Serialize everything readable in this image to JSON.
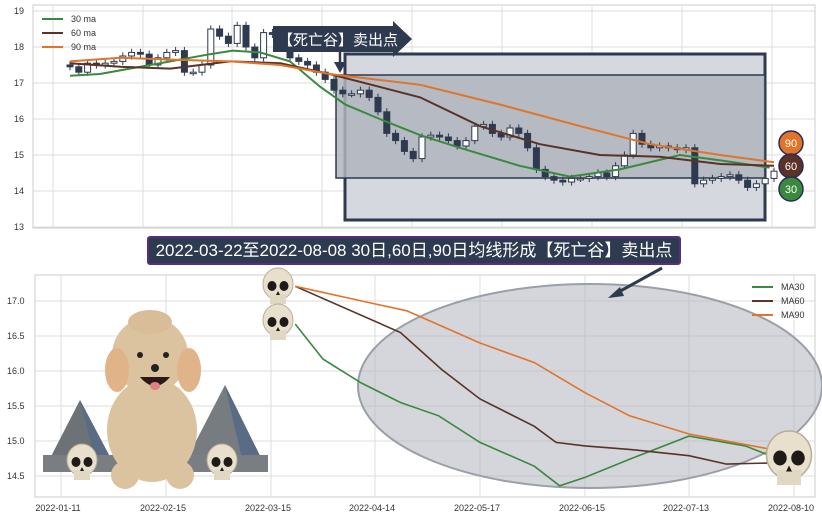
{
  "top_banner": "【死亡谷】卖出点",
  "bottom_title": "2022-03-22至2022-08-08 30日,60日,90日均线形成【死亡谷】卖出点",
  "badges": [
    {
      "label": "90",
      "color": "#e07428"
    },
    {
      "label": "60",
      "color": "#5a3226"
    },
    {
      "label": "30",
      "color": "#3a8a3e"
    }
  ],
  "chart_data": [
    {
      "type": "candlestick",
      "ylim": [
        13,
        19
      ],
      "yticks": [
        "13",
        "14",
        "15",
        "16",
        "17",
        "18",
        "19"
      ],
      "grid": true,
      "legend_position": "top-left",
      "close": [
        17.45,
        17.3,
        17.55,
        17.5,
        17.55,
        17.6,
        17.75,
        17.85,
        17.8,
        17.5,
        17.7,
        17.85,
        17.9,
        17.3,
        17.3,
        17.5,
        18.5,
        18.3,
        18.1,
        18.6,
        18.0,
        17.7,
        18.4,
        18.35,
        18.3,
        17.7,
        17.6,
        17.5,
        17.3,
        17.1,
        16.8,
        16.7,
        16.7,
        16.8,
        16.6,
        16.2,
        15.6,
        15.4,
        15.1,
        14.9,
        15.5,
        15.55,
        15.5,
        15.4,
        15.25,
        15.4,
        15.8,
        15.85,
        15.6,
        15.5,
        15.75,
        15.6,
        15.2,
        14.6,
        14.4,
        14.3,
        14.25,
        14.35,
        14.35,
        14.4,
        14.5,
        14.4,
        14.7,
        15.0,
        15.6,
        15.3,
        15.2,
        15.25,
        15.2,
        15.15,
        15.2,
        14.2,
        14.3,
        14.35,
        14.4,
        14.45,
        14.3,
        14.1,
        14.2,
        14.35,
        14.55
      ],
      "series": [
        {
          "name": "30 ma",
          "color": "#3a8a3e",
          "points": [
            [
              0,
              17.2
            ],
            [
              3.4,
              17.25
            ],
            [
              6.8,
              17.4
            ],
            [
              11.4,
              17.6
            ],
            [
              15.9,
              17.8
            ],
            [
              18.5,
              17.9
            ],
            [
              21.6,
              17.85
            ],
            [
              25,
              17.6
            ],
            [
              28.4,
              16.9
            ],
            [
              31.3,
              16.4
            ],
            [
              35.2,
              16.0
            ],
            [
              39.8,
              15.55
            ],
            [
              44.3,
              15.2
            ],
            [
              51.1,
              14.7
            ],
            [
              56.8,
              14.4
            ],
            [
              62.5,
              14.6
            ],
            [
              69.3,
              15.0
            ],
            [
              73.9,
              14.85
            ],
            [
              79.5,
              14.65
            ]
          ]
        },
        {
          "name": "60 ma",
          "color": "#5a3226",
          "points": [
            [
              0,
              17.55
            ],
            [
              5.7,
              17.45
            ],
            [
              11.4,
              17.4
            ],
            [
              18.2,
              17.6
            ],
            [
              23.9,
              17.55
            ],
            [
              29.5,
              17.25
            ],
            [
              39.8,
              16.6
            ],
            [
              46.6,
              15.8
            ],
            [
              53.4,
              15.3
            ],
            [
              60.2,
              15.0
            ],
            [
              67,
              14.95
            ],
            [
              73.9,
              14.75
            ],
            [
              80,
              14.7
            ]
          ]
        },
        {
          "name": "90 ma",
          "color": "#e07428",
          "points": [
            [
              0,
              17.6
            ],
            [
              5.7,
              17.7
            ],
            [
              11.4,
              17.65
            ],
            [
              18.2,
              17.6
            ],
            [
              23.9,
              17.5
            ],
            [
              29.5,
              17.25
            ],
            [
              39.8,
              16.95
            ],
            [
              48.9,
              16.4
            ],
            [
              58,
              15.8
            ],
            [
              65.9,
              15.3
            ],
            [
              73.9,
              15.0
            ],
            [
              80,
              14.8
            ]
          ]
        }
      ]
    },
    {
      "type": "line",
      "ylim": [
        14.2,
        17.4
      ],
      "yticks": [
        "14.5",
        "15.0",
        "15.5",
        "16.0",
        "16.5",
        "17.0"
      ],
      "xticks": [
        "2022-01-11",
        "2022-02-15",
        "2022-03-15",
        "2022-04-14",
        "2022-05-17",
        "2022-06-15",
        "2022-07-13",
        "2022-08-10"
      ],
      "grid": true,
      "legend_position": "top-right",
      "series": [
        {
          "name": "MA30",
          "color": "#3a8a3e",
          "points": [
            [
              "2022-03-22",
              16.67
            ],
            [
              "2022-03-30",
              16.17
            ],
            [
              "2022-04-10",
              15.83
            ],
            [
              "2022-04-22",
              15.55
            ],
            [
              "2022-05-04",
              15.36
            ],
            [
              "2022-05-17",
              14.98
            ],
            [
              "2022-06-01",
              14.64
            ],
            [
              "2022-06-08",
              14.36
            ],
            [
              "2022-06-15",
              14.48
            ],
            [
              "2022-06-27",
              14.74
            ],
            [
              "2022-07-13",
              15.07
            ],
            [
              "2022-07-28",
              14.93
            ],
            [
              "2022-08-06",
              14.74
            ]
          ]
        },
        {
          "name": "MA60",
          "color": "#5a3226",
          "points": [
            [
              "2022-03-22",
              17.21
            ],
            [
              "2022-04-22",
              16.55
            ],
            [
              "2022-05-05",
              16.02
            ],
            [
              "2022-05-17",
              15.6
            ],
            [
              "2022-06-01",
              15.21
            ],
            [
              "2022-06-07",
              14.98
            ],
            [
              "2022-06-15",
              14.93
            ],
            [
              "2022-06-27",
              14.88
            ],
            [
              "2022-07-13",
              14.79
            ],
            [
              "2022-07-23",
              14.67
            ],
            [
              "2022-08-06",
              14.69
            ]
          ]
        },
        {
          "name": "MA90",
          "color": "#e07428",
          "points": [
            [
              "2022-03-22",
              17.21
            ],
            [
              "2022-04-12",
              16.98
            ],
            [
              "2022-04-24",
              16.86
            ],
            [
              "2022-05-17",
              16.4
            ],
            [
              "2022-06-01",
              16.12
            ],
            [
              "2022-06-15",
              15.69
            ],
            [
              "2022-06-27",
              15.36
            ],
            [
              "2022-07-13",
              15.1
            ],
            [
              "2022-08-06",
              14.86
            ]
          ]
        }
      ]
    }
  ]
}
